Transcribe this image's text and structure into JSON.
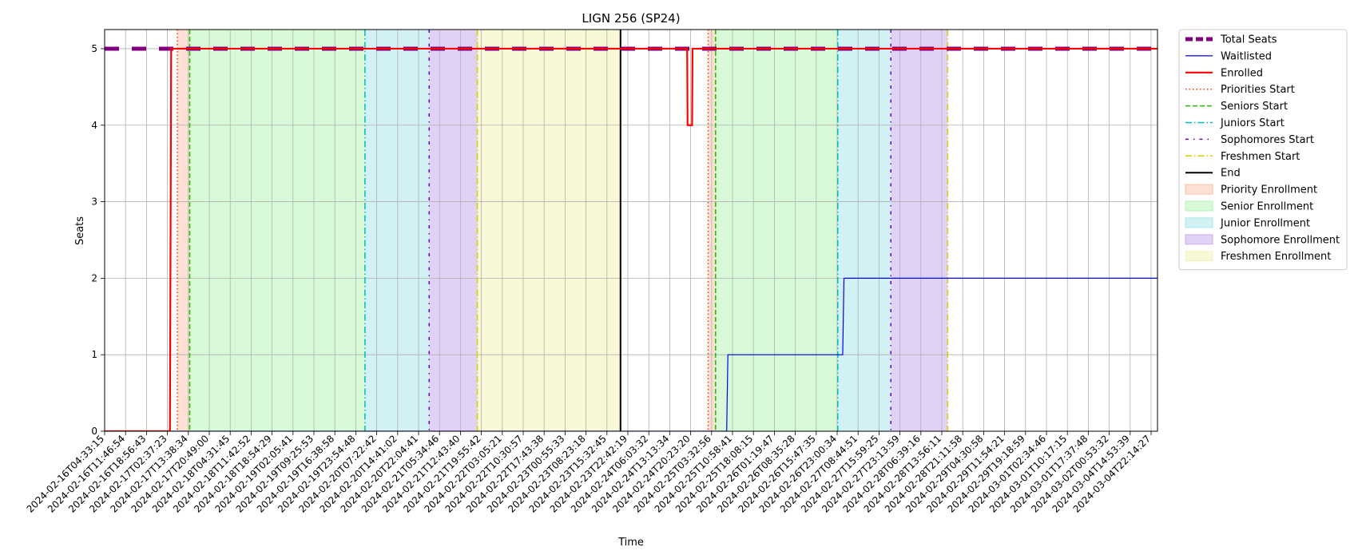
{
  "chart_data": {
    "type": "line",
    "title": "LIGN 256 (SP24)",
    "xlabel": "Time",
    "ylabel": "Seats",
    "xlim": [
      "2024-02-16T04:33:15",
      "2024-03-04T23:00:00"
    ],
    "ylim": [
      0,
      5.25
    ],
    "y_ticks": [
      0,
      1,
      2,
      3,
      4,
      5
    ],
    "grid": true,
    "legend_position": "outside-right",
    "x_tick_labels": [
      "2024-02-16T04:33:15",
      "2024-02-16T11:46:54",
      "2024-02-16T18:56:43",
      "2024-02-17T02:37:23",
      "2024-02-17T13:38:34",
      "2024-02-17T20:49:00",
      "2024-02-18T04:31:45",
      "2024-02-18T11:42:52",
      "2024-02-18T18:54:29",
      "2024-02-19T02:05:41",
      "2024-02-19T09:25:53",
      "2024-02-19T16:38:58",
      "2024-02-19T23:54:48",
      "2024-02-20T07:22:42",
      "2024-02-20T14:41:02",
      "2024-02-20T22:04:41",
      "2024-02-21T05:34:46",
      "2024-02-21T12:43:40",
      "2024-02-21T19:55:42",
      "2024-02-22T03:05:21",
      "2024-02-22T10:30:57",
      "2024-02-22T17:43:38",
      "2024-02-23T00:55:33",
      "2024-02-23T08:23:18",
      "2024-02-23T15:32:45",
      "2024-02-23T22:42:19",
      "2024-02-24T06:03:32",
      "2024-02-24T13:13:34",
      "2024-02-24T20:23:20",
      "2024-02-25T03:32:56",
      "2024-02-25T10:58:41",
      "2024-02-25T18:08:15",
      "2024-02-26T01:19:47",
      "2024-02-26T08:35:28",
      "2024-02-26T15:47:35",
      "2024-02-26T23:00:34",
      "2024-02-27T08:44:51",
      "2024-02-27T15:59:25",
      "2024-02-27T23:13:59",
      "2024-02-28T06:39:16",
      "2024-02-28T13:56:11",
      "2024-02-28T21:11:58",
      "2024-02-29T04:30:58",
      "2024-02-29T11:54:21",
      "2024-02-29T19:18:59",
      "2024-03-01T02:34:46",
      "2024-03-01T10:17:15",
      "2024-03-01T17:37:48",
      "2024-03-02T00:53:32",
      "2024-03-04T14:53:39",
      "2024-03-04T22:14:27"
    ],
    "series": [
      {
        "name": "Total Seats",
        "color": "#800080",
        "style": "dashed-thick",
        "points": [
          [
            "2024-02-16T04:33:15",
            5
          ],
          [
            "2024-03-04T23:00:00",
            5
          ]
        ]
      },
      {
        "name": "Waitlisted",
        "color": "#0000ff",
        "style": "solid-thin",
        "points": [
          [
            "2024-02-16T04:33:15",
            0
          ],
          [
            "2024-02-26T16:30:00",
            0
          ],
          [
            "2024-02-26T17:00:00",
            1
          ],
          [
            "2024-02-28T15:30:00",
            1
          ],
          [
            "2024-02-28T16:00:00",
            2
          ],
          [
            "2024-03-04T23:00:00",
            2
          ]
        ]
      },
      {
        "name": "Enrolled",
        "color": "#ff0000",
        "style": "solid-thick",
        "points": [
          [
            "2024-02-16T04:33:15",
            0
          ],
          [
            "2024-02-17T07:00:00",
            0
          ],
          [
            "2024-02-17T07:30:00",
            5
          ],
          [
            "2024-02-26T00:30:00",
            5
          ],
          [
            "2024-02-26T00:40:00",
            4
          ],
          [
            "2024-02-26T02:30:00",
            4
          ],
          [
            "2024-02-26T02:40:00",
            5
          ],
          [
            "2024-03-04T23:00:00",
            5
          ]
        ]
      }
    ],
    "markers": [
      {
        "name": "Priorities Start",
        "color": "#ff3300",
        "style": "dotted",
        "x": [
          "2024-02-17T10:00:00",
          "2024-02-26T09:00:00"
        ]
      },
      {
        "name": "Seniors Start",
        "color": "#22bb00",
        "style": "dashed",
        "x": [
          "2024-02-17T15:00:00",
          "2024-02-26T12:00:00"
        ]
      },
      {
        "name": "Juniors Start",
        "color": "#00bbbb",
        "style": "dashdot",
        "x": [
          "2024-02-20T14:00:00",
          "2024-02-28T13:30:00"
        ]
      },
      {
        "name": "Sophomores Start",
        "color": "#6600cc",
        "style": "dashdot-dense",
        "x": [
          "2024-02-21T16:00:00",
          "2024-02-29T11:00:00"
        ]
      },
      {
        "name": "Freshmen Start",
        "color": "#ddcc00",
        "style": "dashdot",
        "x": [
          "2024-02-22T11:30:00",
          "2024-03-01T10:00:00"
        ]
      },
      {
        "name": "End",
        "color": "#000000",
        "style": "solid",
        "x": [
          "2024-02-24T21:30:00"
        ]
      }
    ],
    "spans": [
      {
        "name": "Priority Enrollment",
        "color": "#f4a582",
        "alpha": 0.35,
        "ranges": [
          [
            "2024-02-17T10:00:00",
            "2024-02-17T15:00:00"
          ],
          [
            "2024-02-26T09:00:00",
            "2024-02-26T12:00:00"
          ]
        ]
      },
      {
        "name": "Senior Enrollment",
        "color": "#90ee90",
        "alpha": 0.35,
        "ranges": [
          [
            "2024-02-17T15:00:00",
            "2024-02-20T14:00:00"
          ],
          [
            "2024-02-26T12:00:00",
            "2024-02-28T13:30:00"
          ]
        ]
      },
      {
        "name": "Junior Enrollment",
        "color": "#7fd8e0",
        "alpha": 0.35,
        "ranges": [
          [
            "2024-02-20T14:00:00",
            "2024-02-21T16:00:00"
          ],
          [
            "2024-02-28T13:30:00",
            "2024-02-29T11:00:00"
          ]
        ]
      },
      {
        "name": "Sophomore Enrollment",
        "color": "#b08ee6",
        "alpha": 0.4,
        "ranges": [
          [
            "2024-02-21T16:00:00",
            "2024-02-22T11:30:00"
          ],
          [
            "2024-02-29T11:00:00",
            "2024-03-01T10:00:00"
          ]
        ]
      },
      {
        "name": "Freshmen Enrollment",
        "color": "#eeee99",
        "alpha": 0.4,
        "ranges": [
          [
            "2024-02-22T11:30:00",
            "2024-02-24T21:30:00"
          ]
        ]
      }
    ]
  }
}
